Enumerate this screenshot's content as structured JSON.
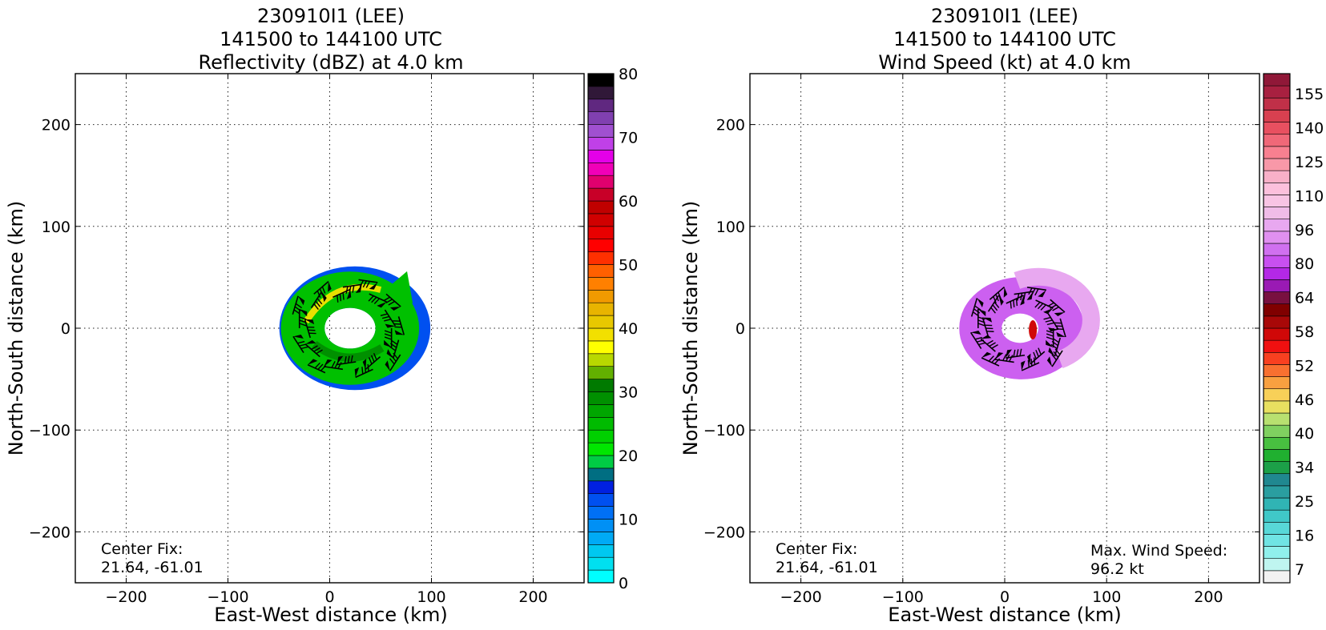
{
  "panels": [
    {
      "title": [
        "230910I1 (LEE)",
        "141500 to 144100 UTC",
        "Reflectivity (dBZ) at 4.0 km"
      ],
      "annotation_left": [
        "Center Fix:",
        "21.64, -61.01"
      ],
      "annotation_right": [],
      "colorbar": {
        "min": 0,
        "max": 80,
        "tick_labels": [
          "0",
          "10",
          "20",
          "30",
          "40",
          "50",
          "60",
          "70",
          "80"
        ],
        "colors": [
          "#00ffff",
          "#00e0f0",
          "#00c8f0",
          "#00aaf5",
          "#0090f5",
          "#0070f5",
          "#0050f0",
          "#0020e0",
          "#006e82",
          "#00cc44",
          "#00e600",
          "#00d000",
          "#00bb00",
          "#00a600",
          "#009000",
          "#007a00",
          "#62b000",
          "#b8d800",
          "#ffff00",
          "#f2e000",
          "#e8c800",
          "#e8b400",
          "#f09a00",
          "#ff8000",
          "#ff6000",
          "#ff3000",
          "#ff0000",
          "#e80000",
          "#d00000",
          "#c00000",
          "#c80028",
          "#e0006e",
          "#f000b8",
          "#e400e8",
          "#c040e8",
          "#a050d0",
          "#8040b0",
          "#602880",
          "#301838",
          "#000000"
        ]
      },
      "xlabel": "East-West distance (km)",
      "ylabel": "North-South distance (km)"
    },
    {
      "title": [
        "230910I1 (LEE)",
        "141500 to 144100 UTC",
        "Wind Speed (kt) at 4.0 km"
      ],
      "annotation_left": [
        "Center Fix:",
        "21.64, -61.01"
      ],
      "annotation_right": [
        "Max. Wind Speed:",
        "96.2 kt"
      ],
      "colorbar": {
        "min": 7,
        "max": 160,
        "tick_labels": [
          "7",
          "16",
          "25",
          "34",
          "40",
          "46",
          "52",
          "58",
          "64",
          "80",
          "96",
          "110",
          "125",
          "140",
          "155"
        ],
        "colors": [
          "#f2f2f2",
          "#bff5f0",
          "#90f0ec",
          "#70e4e4",
          "#58d8d8",
          "#40c8c8",
          "#30b4b4",
          "#2a9ea0",
          "#208890",
          "#1ca048",
          "#20b030",
          "#48c040",
          "#80d060",
          "#b8e070",
          "#e8e060",
          "#f8d058",
          "#f8a040",
          "#f87030",
          "#f84020",
          "#f01010",
          "#d00808",
          "#a80808",
          "#800000",
          "#781040",
          "#9a1ab4",
          "#b428e6",
          "#c850f0",
          "#d070f0",
          "#e090f0",
          "#e8a8f0",
          "#f0bce8",
          "#f8c4e4",
          "#fcc0dc",
          "#f8b0c8",
          "#f898a8",
          "#f88090",
          "#f06878",
          "#e85060",
          "#d84050",
          "#c03048",
          "#a82040",
          "#901838"
        ]
      },
      "xlabel": "East-West distance (km)",
      "ylabel": "North-South distance (km)"
    }
  ],
  "chart_data": [
    {
      "type": "heatmap",
      "title": "230910I1 (LEE) 141500 to 144100 UTC Reflectivity (dBZ) at 4.0 km",
      "xlabel": "East-West distance (km)",
      "ylabel": "North-South distance (km)",
      "xlim": [
        -250,
        250
      ],
      "ylim": [
        -250,
        250
      ],
      "xticks": [
        -200,
        -100,
        0,
        100,
        200
      ],
      "yticks": [
        -200,
        -100,
        0,
        100,
        200
      ],
      "grid": true,
      "colorbar_label": "dBZ",
      "colorbar_range": [
        0,
        80
      ],
      "echo_region": {
        "center": [
          20,
          0
        ],
        "inner_radius_km": 25,
        "outer_radius_km": 70
      },
      "dominant_values_dbz": [
        15,
        25,
        35
      ],
      "center_fix": [
        21.64,
        -61.01
      ]
    },
    {
      "type": "heatmap",
      "title": "230910I1 (LEE) 141500 to 144100 UTC Wind Speed (kt) at 4.0 km",
      "xlabel": "East-West distance (km)",
      "ylabel": "North-South distance (km)",
      "xlim": [
        -250,
        250
      ],
      "ylim": [
        -250,
        250
      ],
      "xticks": [
        -200,
        -100,
        0,
        100,
        200
      ],
      "yticks": [
        -200,
        -100,
        0,
        100,
        200
      ],
      "grid": true,
      "colorbar_label": "kt",
      "colorbar_range": [
        7,
        160
      ],
      "wind_region": {
        "center": [
          15,
          0
        ],
        "inner_radius_km": 18,
        "outer_radius_km": 60
      },
      "dominant_values_kt": [
        80,
        96
      ],
      "max_wind_speed_kt": 96.2,
      "center_fix": [
        21.64,
        -61.01
      ]
    }
  ]
}
